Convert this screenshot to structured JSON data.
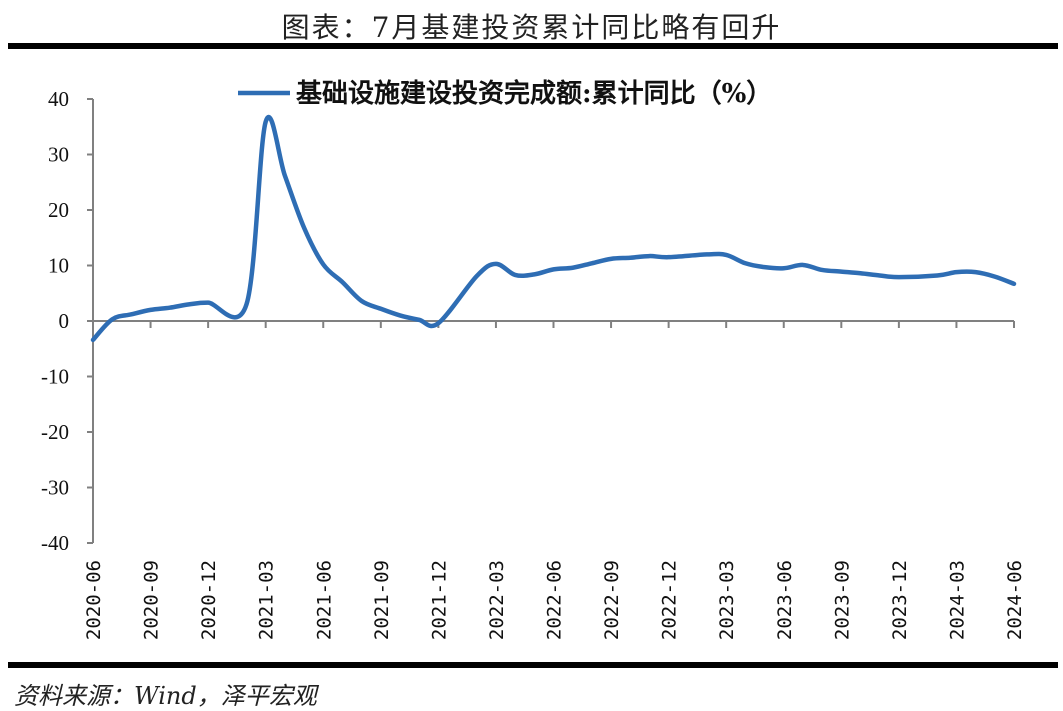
{
  "header": {
    "title": "图表：7月基建投资累计同比略有回升"
  },
  "footer": {
    "source": "资料来源：Wind，泽平宏观"
  },
  "colors": {
    "series": "#2E6DB4",
    "axis": "#808080",
    "rule": "#000000"
  },
  "chart_data": {
    "type": "line",
    "title": "图表：7月基建投资累计同比略有回升",
    "xlabel": "",
    "ylabel": "",
    "ylim": [
      -40,
      40
    ],
    "yticks": [
      40,
      30,
      20,
      10,
      0,
      -10,
      -20,
      -30,
      -40
    ],
    "xticks": [
      "2020-06",
      "2020-09",
      "2020-12",
      "2021-03",
      "2021-06",
      "2021-09",
      "2021-12",
      "2022-03",
      "2022-06",
      "2022-09",
      "2022-12",
      "2023-03",
      "2023-06",
      "2023-09",
      "2023-12",
      "2024-03",
      "2024-06"
    ],
    "grid": false,
    "legend_position": "top",
    "series": [
      {
        "name": "基础设施建设投资完成额:累计同比（%）",
        "x": [
          "2020-06",
          "2020-07",
          "2020-08",
          "2020-09",
          "2020-10",
          "2020-11",
          "2020-12",
          "2021-02",
          "2021-03",
          "2021-04",
          "2021-05",
          "2021-06",
          "2021-07",
          "2021-08",
          "2021-09",
          "2021-10",
          "2021-11",
          "2021-12",
          "2022-02",
          "2022-03",
          "2022-04",
          "2022-05",
          "2022-06",
          "2022-07",
          "2022-08",
          "2022-09",
          "2022-10",
          "2022-11",
          "2022-12",
          "2023-02",
          "2023-03",
          "2023-04",
          "2023-05",
          "2023-06",
          "2023-07",
          "2023-08",
          "2023-09",
          "2023-10",
          "2023-11",
          "2023-12",
          "2024-02",
          "2024-03",
          "2024-04",
          "2024-05",
          "2024-06"
        ],
        "values": [
          -3.4,
          0.3,
          1.2,
          2.0,
          2.4,
          3.0,
          3.3,
          3.0,
          35.9,
          26.2,
          16.8,
          10.2,
          7.0,
          3.6,
          2.2,
          1.0,
          0.2,
          -0.4,
          8.1,
          10.3,
          8.3,
          8.4,
          9.3,
          9.6,
          10.4,
          11.2,
          11.4,
          11.7,
          11.5,
          12.0,
          11.9,
          10.4,
          9.7,
          9.5,
          10.1,
          9.2,
          8.9,
          8.6,
          8.2,
          7.9,
          8.2,
          8.8,
          8.8,
          8.0,
          6.7
        ]
      }
    ]
  }
}
